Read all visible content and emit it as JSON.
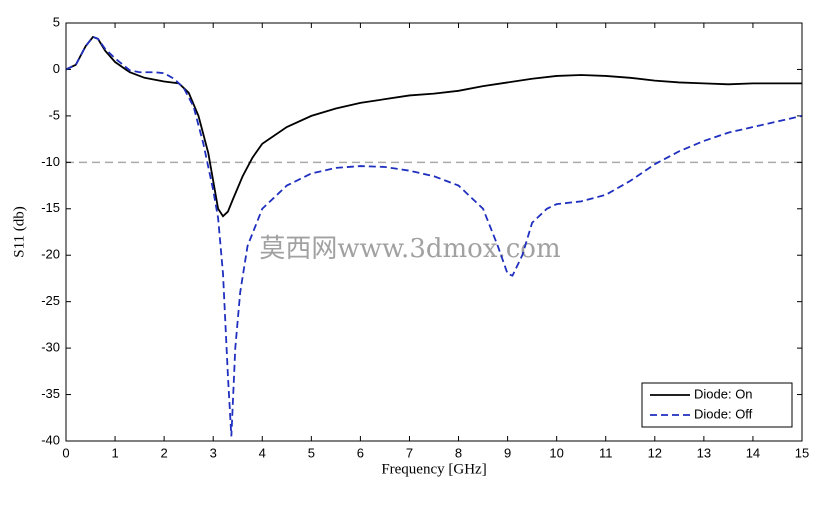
{
  "chart_data": {
    "type": "line",
    "xlabel": "Frequency [GHz]",
    "ylabel": "S11 (db)",
    "xlim": [
      0,
      15
    ],
    "xticks": [
      0,
      1,
      2,
      3,
      4,
      5,
      6,
      7,
      8,
      9,
      10,
      11,
      12,
      13,
      14,
      15
    ],
    "ylim": [
      -40,
      5
    ],
    "yticks": [
      -40,
      -35,
      -30,
      -25,
      -20,
      -15,
      -10,
      -5,
      0,
      5
    ],
    "reference_line": {
      "value": -10,
      "color": "#aaaaaa"
    },
    "legend": "lower right",
    "watermark": "莫西网www.3dmox.com",
    "series": [
      {
        "name": "Diode: On",
        "color": "#000000",
        "dash": "solid",
        "x": [
          0,
          0.2,
          0.4,
          0.55,
          0.65,
          0.8,
          1,
          1.3,
          1.6,
          2,
          2.3,
          2.5,
          2.7,
          2.9,
          3.0,
          3.1,
          3.2,
          3.3,
          3.4,
          3.6,
          3.8,
          4,
          4.5,
          5,
          5.5,
          6,
          6.5,
          7,
          7.5,
          8,
          8.5,
          9,
          9.5,
          10,
          10.5,
          11,
          11.5,
          12,
          12.5,
          13,
          13.5,
          14,
          14.5,
          15
        ],
        "values": [
          0,
          0.5,
          2.5,
          3.5,
          3.3,
          2,
          0.8,
          -0.3,
          -0.9,
          -1.3,
          -1.5,
          -2.5,
          -5,
          -9,
          -12,
          -15,
          -15.8,
          -15.3,
          -14,
          -11.5,
          -9.5,
          -8,
          -6.2,
          -5,
          -4.2,
          -3.6,
          -3.2,
          -2.8,
          -2.6,
          -2.3,
          -1.8,
          -1.4,
          -1.0,
          -0.7,
          -0.6,
          -0.7,
          -0.9,
          -1.2,
          -1.4,
          -1.5,
          -1.6,
          -1.5,
          -1.5,
          -1.5
        ]
      },
      {
        "name": "Diode: Off",
        "color": "#1f2fbf",
        "dash": "dashed",
        "x": [
          0,
          0.2,
          0.4,
          0.55,
          0.65,
          0.8,
          1,
          1.3,
          1.5,
          1.8,
          2,
          2.2,
          2.4,
          2.6,
          2.8,
          3.0,
          3.1,
          3.2,
          3.3,
          3.37,
          3.45,
          3.55,
          3.7,
          4,
          4.5,
          5,
          5.5,
          6,
          6.5,
          7,
          7.5,
          8,
          8.5,
          8.8,
          9,
          9.1,
          9.3,
          9.5,
          9.8,
          10,
          10.5,
          11,
          11.5,
          12,
          12.5,
          13,
          13.5,
          14,
          14.5,
          15
        ],
        "values": [
          0,
          0.5,
          2.5,
          3.5,
          3.3,
          2.2,
          1.2,
          -0.1,
          -0.3,
          -0.3,
          -0.4,
          -1.0,
          -2,
          -4,
          -8,
          -13,
          -16,
          -22,
          -33,
          -39.5,
          -30,
          -24,
          -19,
          -15,
          -12.5,
          -11.2,
          -10.6,
          -10.4,
          -10.5,
          -10.9,
          -11.5,
          -12.5,
          -15,
          -19,
          -22,
          -22.2,
          -20,
          -16.5,
          -15,
          -14.5,
          -14.2,
          -13.5,
          -12,
          -10.2,
          -8.8,
          -7.7,
          -6.8,
          -6.2,
          -5.6,
          -5
        ]
      }
    ]
  }
}
